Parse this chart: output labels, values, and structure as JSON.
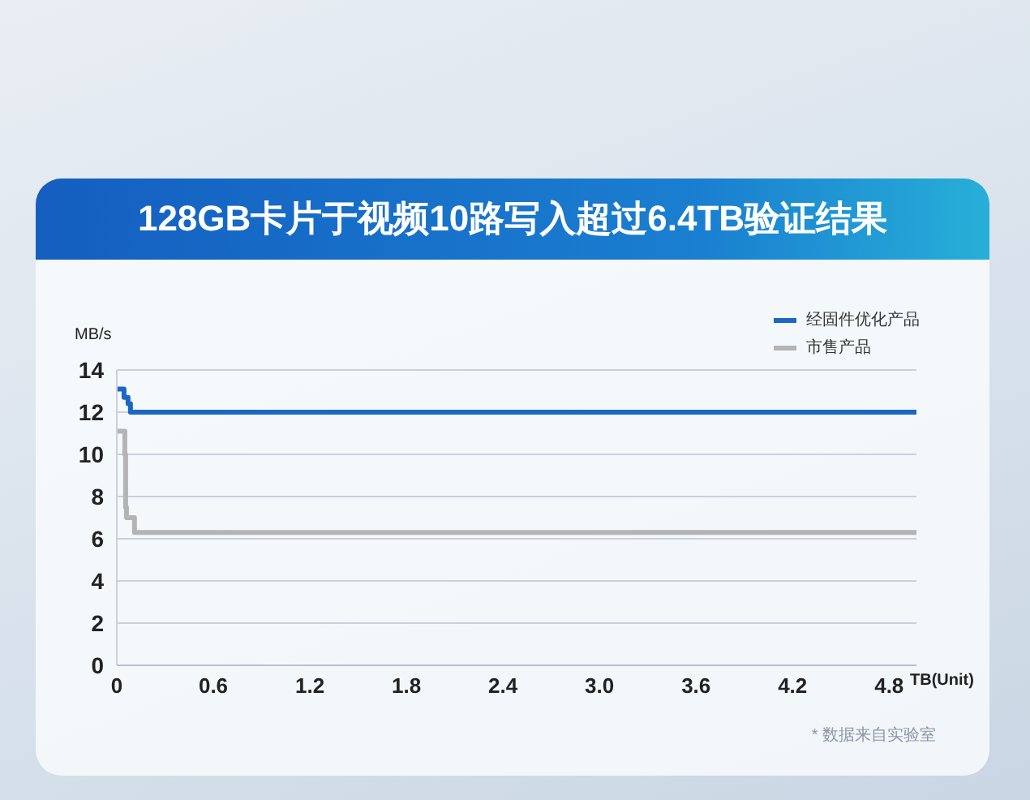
{
  "chart_data": {
    "type": "step",
    "title": "128GB卡片于视频10路写入超过6.4TB验证结果",
    "xlabel": "TB(Unit)",
    "ylabel": "MB/s",
    "annotations": [
      "* 数据来自实验室"
    ],
    "series": [
      {
        "name": "经固件优化产品",
        "color": "#1a68c4",
        "x": [
          0,
          0.045,
          0.07,
          0.085,
          4.97
        ],
        "values": [
          13.1,
          12.7,
          12.4,
          12.0,
          12.0
        ]
      },
      {
        "name": "市售产品",
        "color": "#b4b4b4",
        "x": [
          0,
          0.045,
          0.05,
          0.055,
          0.06,
          0.105,
          0.11,
          4.97
        ],
        "values": [
          11.1,
          11.1,
          10.0,
          7.5,
          7.0,
          7.0,
          6.3,
          6.3
        ]
      }
    ],
    "xlim": [
      0,
      4.97
    ],
    "xticks": [
      0,
      0.6,
      1.2,
      1.8,
      2.4,
      {
        "value": 3,
        "label": "3.0"
      },
      3.6,
      4.2,
      4.8
    ],
    "ylim": [
      0,
      14
    ],
    "yticks": [
      0,
      2,
      4,
      6,
      8,
      10,
      12,
      14
    ],
    "grid": "y",
    "legend": "top right"
  }
}
